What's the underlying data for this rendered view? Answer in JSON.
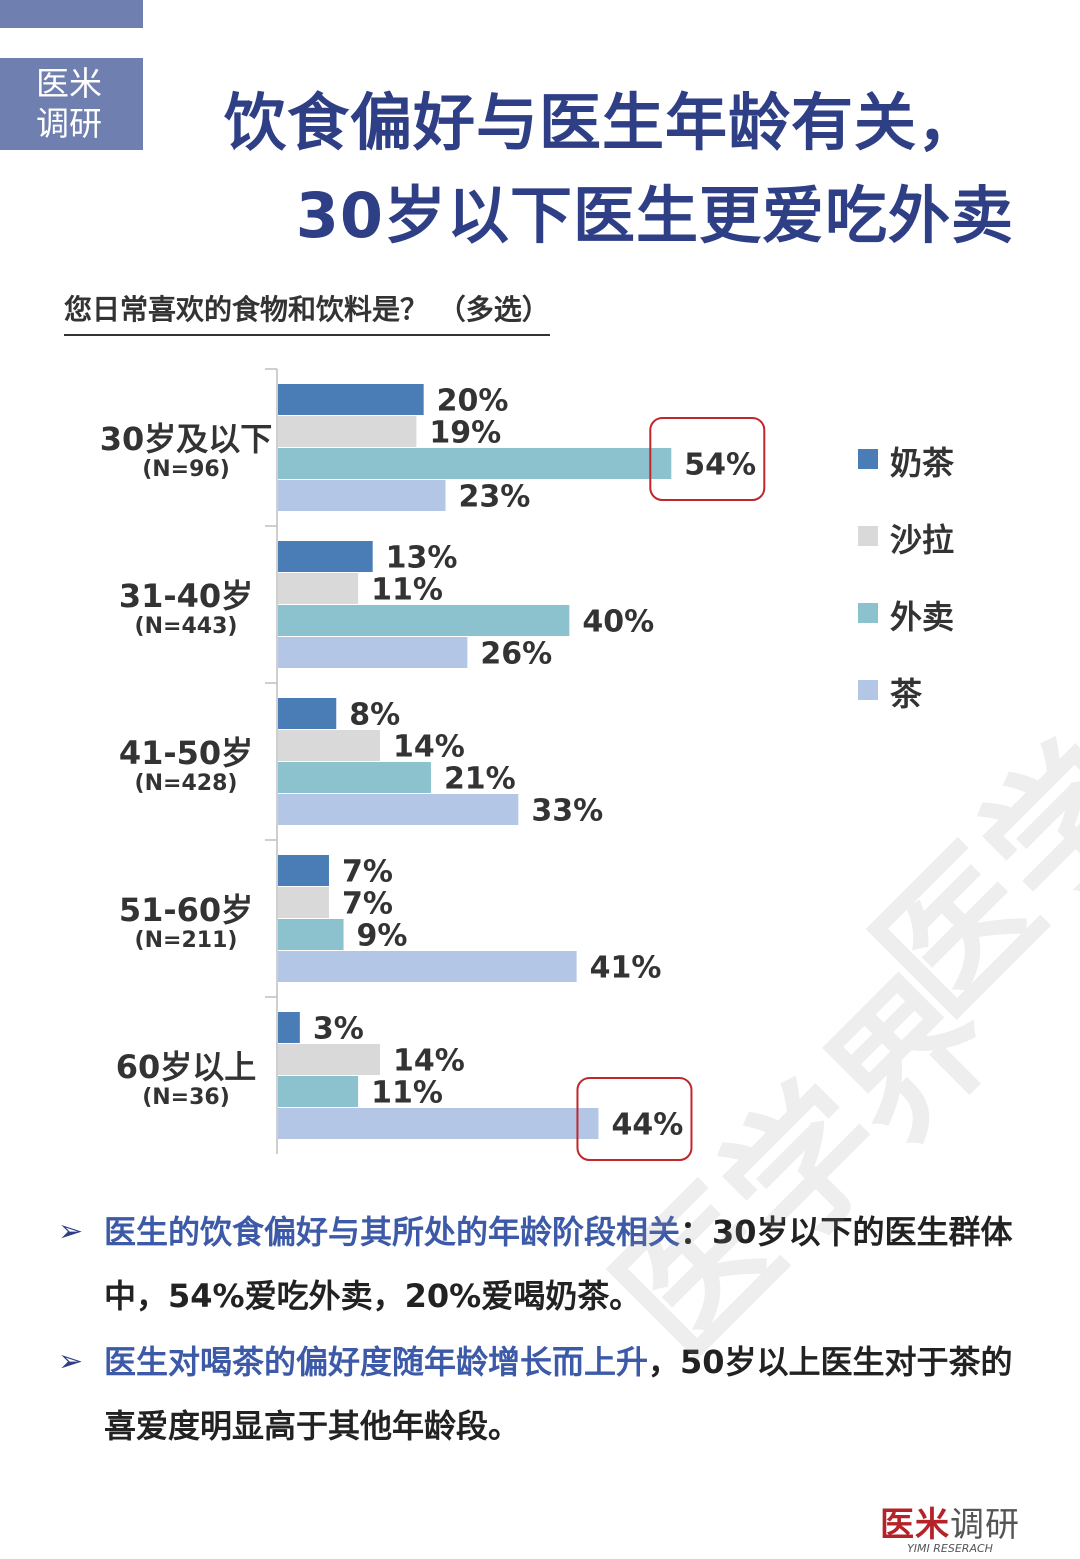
{
  "badge": {
    "line1": "医米",
    "line2": "调研"
  },
  "title": {
    "line1": "饮食偏好与医生年龄有关，",
    "line2": "30岁以下医生更爱吃外卖"
  },
  "question": "您日常喜欢的食物和饮料是？ （多选）",
  "chart_data": {
    "type": "bar",
    "orientation": "horizontal",
    "categories": [
      "30岁及以下",
      "31-40岁",
      "41-50岁",
      "51-60岁",
      "60岁以上"
    ],
    "category_n": [
      "(N=96)",
      "(N=443)",
      "(N=428)",
      "(N=211)",
      "(N=36)"
    ],
    "series": [
      {
        "name": "奶茶",
        "color": "#4a7db5",
        "values": [
          20,
          13,
          8,
          7,
          3
        ]
      },
      {
        "name": "沙拉",
        "color": "#d9d9d9",
        "values": [
          19,
          11,
          14,
          7,
          14
        ]
      },
      {
        "name": "外卖",
        "color": "#8cc2cd",
        "values": [
          54,
          40,
          21,
          9,
          11
        ]
      },
      {
        "name": "茶",
        "color": "#b3c6e6",
        "values": [
          23,
          26,
          33,
          41,
          44
        ]
      }
    ],
    "value_suffix": "%",
    "xlim": [
      0,
      60
    ],
    "legend_position": "right",
    "highlighted": [
      {
        "category": "30岁及以下",
        "series": "外卖"
      },
      {
        "category": "60岁以上",
        "series": "茶"
      }
    ],
    "highlight_color": "#c0272d"
  },
  "bullets": [
    {
      "highlight": "医生的饮食偏好与其所处的年龄阶段相关",
      "text": "：30岁以下的医生群体中，54%爱吃外卖，20%爱喝奶茶。"
    },
    {
      "highlight": "医生对喝茶的偏好度随年龄增长而上升",
      "text": "，50岁以上医生对于茶的喜爱度明显高于其他年龄段。"
    }
  ],
  "brand": {
    "red": "医米",
    "grey": "调研",
    "en": "YIMI RESERACH"
  },
  "watermark": "医学界"
}
